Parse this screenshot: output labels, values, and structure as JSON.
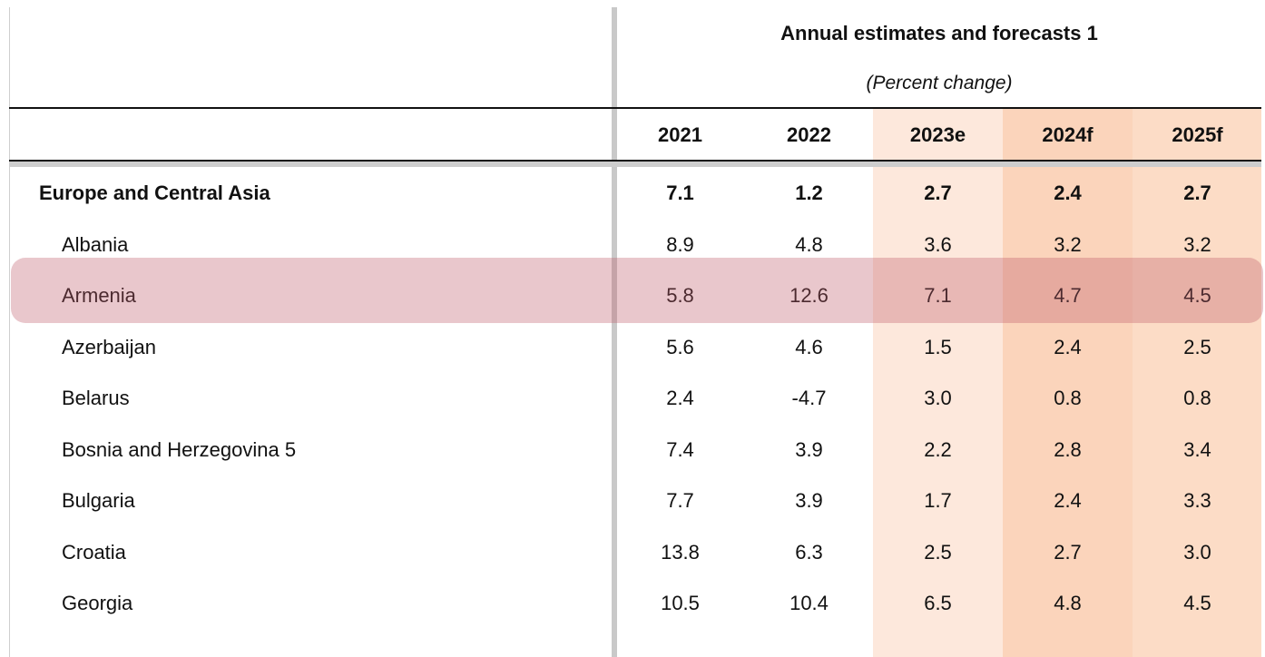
{
  "header": {
    "title": "Annual estimates and forecasts 1",
    "subtitle": "(Percent change)"
  },
  "columns": [
    "2021",
    "2022",
    "2023e",
    "2024f",
    "2025f"
  ],
  "rows": [
    {
      "label": "Europe and Central Asia",
      "values": [
        "7.1",
        "1.2",
        "2.7",
        "2.4",
        "2.7"
      ],
      "region": true
    },
    {
      "label": "Albania",
      "values": [
        "8.9",
        "4.8",
        "3.6",
        "3.2",
        "3.2"
      ]
    },
    {
      "label": "Armenia",
      "values": [
        "5.8",
        "12.6",
        "7.1",
        "4.7",
        "4.5"
      ],
      "highlighted": true
    },
    {
      "label": "Azerbaijan",
      "values": [
        "5.6",
        "4.6",
        "1.5",
        "2.4",
        "2.5"
      ]
    },
    {
      "label": "Belarus",
      "values": [
        "2.4",
        "-4.7",
        "3.0",
        "0.8",
        "0.8"
      ]
    },
    {
      "label": "Bosnia and Herzegovina 5",
      "values": [
        "7.4",
        "3.9",
        "2.2",
        "2.8",
        "3.4"
      ]
    },
    {
      "label": "Bulgaria",
      "values": [
        "7.7",
        "3.9",
        "1.7",
        "2.4",
        "3.3"
      ]
    },
    {
      "label": "Croatia",
      "values": [
        "13.8",
        "6.3",
        "2.5",
        "2.7",
        "3.0"
      ]
    },
    {
      "label": "Georgia",
      "values": [
        "10.5",
        "10.4",
        "6.5",
        "4.8",
        "4.5"
      ]
    }
  ],
  "colors": {
    "estimate_shade": "#fde8dc",
    "forecast_2024_shade": "#fbd4bb",
    "forecast_2025_shade": "#fcdcc6",
    "highlight": "#be5a69"
  }
}
